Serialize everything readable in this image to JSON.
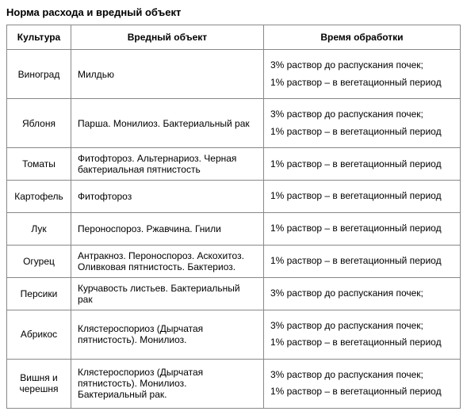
{
  "title": "Норма расхода и вредный объект",
  "columns": [
    "Культура",
    "Вредный объект",
    "Время обработки"
  ],
  "rows": [
    {
      "culture": "Виноград",
      "object": "Милдью",
      "time": [
        "3% раствор до распускания почек;",
        "1% раствор – в вегетационный период"
      ]
    },
    {
      "culture": "Яблоня",
      "object": "Парша. Монилиоз. Бактериальный рак",
      "time": [
        "3% раствор до распускания почек;",
        "1% раствор – в вегетационный период"
      ]
    },
    {
      "culture": "Томаты",
      "object": "Фитофтороз. Альтернариоз. Черная бактериальная пятнистость",
      "time": [
        "1% раствор – в вегетационный период"
      ]
    },
    {
      "culture": "Картофель",
      "object": "Фитофтороз",
      "time": [
        "1% раствор – в вегетационный период"
      ]
    },
    {
      "culture": "Лук",
      "object": "Пероноспороз. Ржавчина.  Гнили",
      "time": [
        "1% раствор – в вегетационный период"
      ]
    },
    {
      "culture": "Огурец",
      "object": "Антракноз. Пероноспороз. Аскохитоз. Оливковая пятнистость. Бактериоз.",
      "time": [
        "1% раствор – в вегетационный период"
      ]
    },
    {
      "culture": "Персики",
      "object": "Курчавость листьев. Бактериальный  рак",
      "time": [
        "3% раствор до распускания почек;"
      ]
    },
    {
      "culture": "Абрикос",
      "object": "Клястероспориоз (Дырчатая пятнистость). Монилиоз.",
      "time": [
        "3% раствор до распускания почек;",
        "1% раствор – в вегетационный период"
      ]
    },
    {
      "culture": "Вишня и черешня",
      "object": "Клястероспориоз (Дырчатая пятнистость). Монилиоз. Бактериальный рак.",
      "time": [
        "3% раствор до распускания почек;",
        "1% раствор – в вегетационный период"
      ]
    }
  ]
}
